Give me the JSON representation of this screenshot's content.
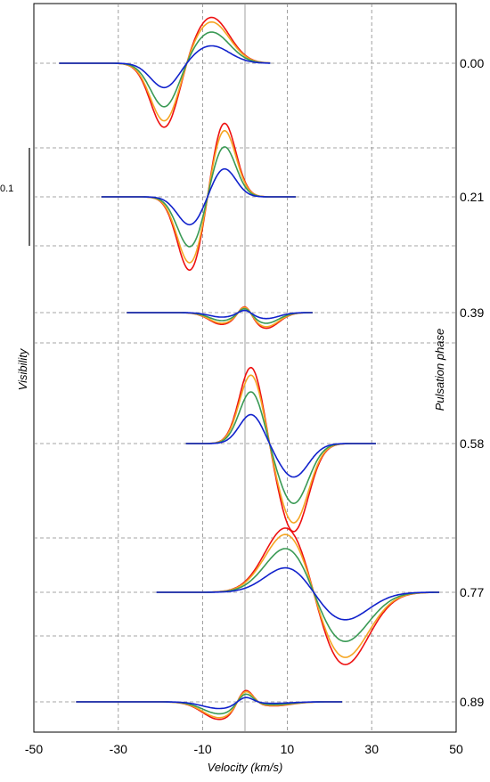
{
  "chart_data": {
    "type": "line",
    "title": "",
    "xlabel": "Velocity  (km/s)",
    "ylabel": "Visibility",
    "y2label": "Pulsation phase",
    "xlim": [
      -50,
      50
    ],
    "x_ticks": [
      "-50",
      "-30",
      "-10",
      "10",
      "30",
      "50"
    ],
    "grid": true,
    "grid_x_values": [
      -30,
      -10,
      10,
      30
    ],
    "zero_line_x": 0,
    "scale_bar": {
      "label": "0.1",
      "value": 0.1
    },
    "series_colors": [
      "#ee1111",
      "#f5a623",
      "#3a9a55",
      "#1122cc"
    ],
    "series_scale": [
      1.0,
      0.9,
      0.68,
      0.38
    ],
    "panels": [
      {
        "phase": "0.00",
        "xrange": [
          -44,
          6
        ],
        "components": [
          {
            "center": -8,
            "sigma": 4.3,
            "amp": 0.047
          },
          {
            "center": -19,
            "sigma": 3.3,
            "amp": -0.067
          }
        ]
      },
      {
        "phase": "0.21",
        "xrange": [
          -34,
          12
        ],
        "components": [
          {
            "center": -5,
            "sigma": 2.8,
            "amp": 0.077
          },
          {
            "center": -13,
            "sigma": 3.0,
            "amp": -0.076
          }
        ]
      },
      {
        "phase": "0.39",
        "xrange": [
          -28,
          16
        ],
        "components": [
          {
            "center": 0,
            "sigma": 1.5,
            "amp": 0.012
          },
          {
            "center": -5.5,
            "sigma": 3.0,
            "amp": -0.012
          },
          {
            "center": 5,
            "sigma": 3.0,
            "amp": -0.016
          }
        ]
      },
      {
        "phase": "0.58",
        "xrange": [
          -14,
          31
        ],
        "components": [
          {
            "center": 1.5,
            "sigma": 2.8,
            "amp": 0.079
          },
          {
            "center": 11.5,
            "sigma": 3.5,
            "amp": -0.09
          }
        ]
      },
      {
        "phase": "0.77",
        "xrange": [
          -21,
          46
        ],
        "components": [
          {
            "center": 10.5,
            "sigma": 5.4,
            "amp": 0.073
          },
          {
            "center": 23,
            "sigma": 6.0,
            "amp": -0.078
          }
        ]
      },
      {
        "phase": "0.89",
        "xrange": [
          -40,
          23
        ],
        "components": [
          {
            "center": 0,
            "sigma": 1.8,
            "amp": 0.018
          },
          {
            "center": -6,
            "sigma": 4.0,
            "amp": -0.018
          },
          {
            "center": 7,
            "sigma": 4.0,
            "amp": -0.004
          }
        ]
      }
    ]
  }
}
